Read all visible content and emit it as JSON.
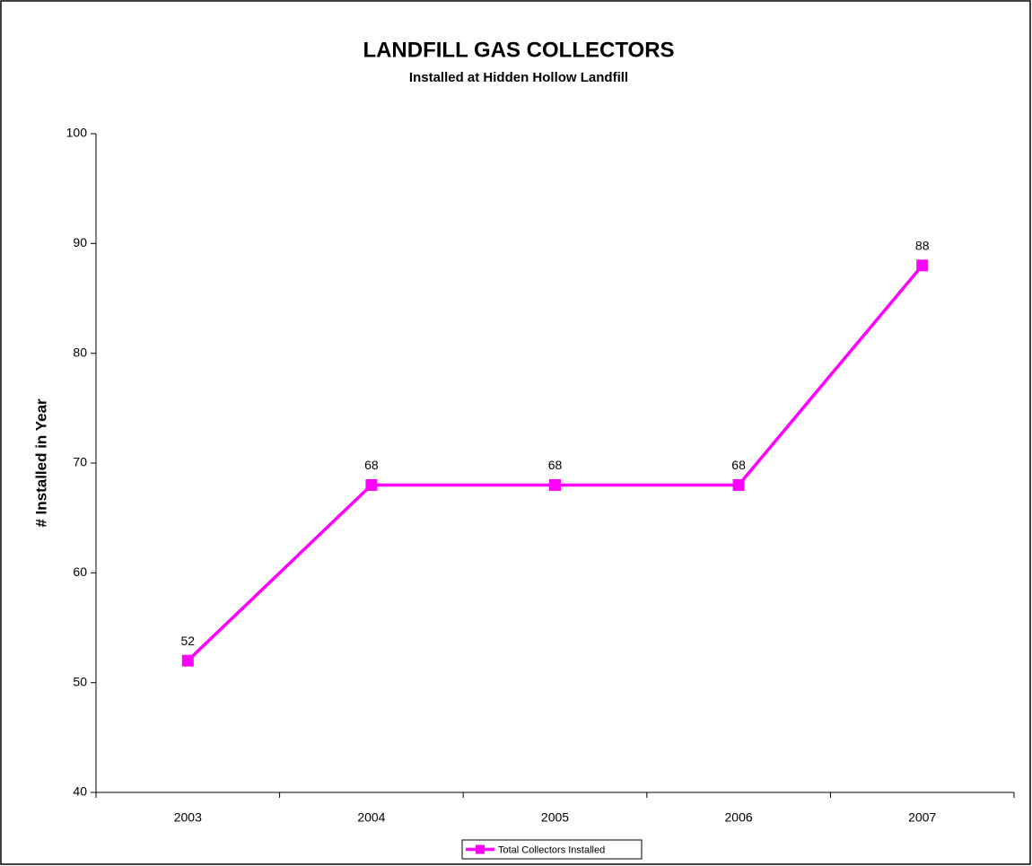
{
  "chart_data": {
    "type": "line",
    "title": "LANDFILL GAS COLLECTORS",
    "subtitle": "Installed at Hidden Hollow Landfill",
    "y_label": "# Installed in Year",
    "categories": [
      "2003",
      "2004",
      "2005",
      "2006",
      "2007"
    ],
    "series": [
      {
        "name": "Total Collectors Installed",
        "color": "#ff00ff",
        "values": [
          52,
          68,
          68,
          68,
          88
        ]
      }
    ],
    "ylim": [
      40,
      100
    ],
    "yticks": [
      40,
      50,
      60,
      70,
      80,
      90,
      100
    ],
    "grid": false,
    "legend": "bottom",
    "data_labels": true
  }
}
